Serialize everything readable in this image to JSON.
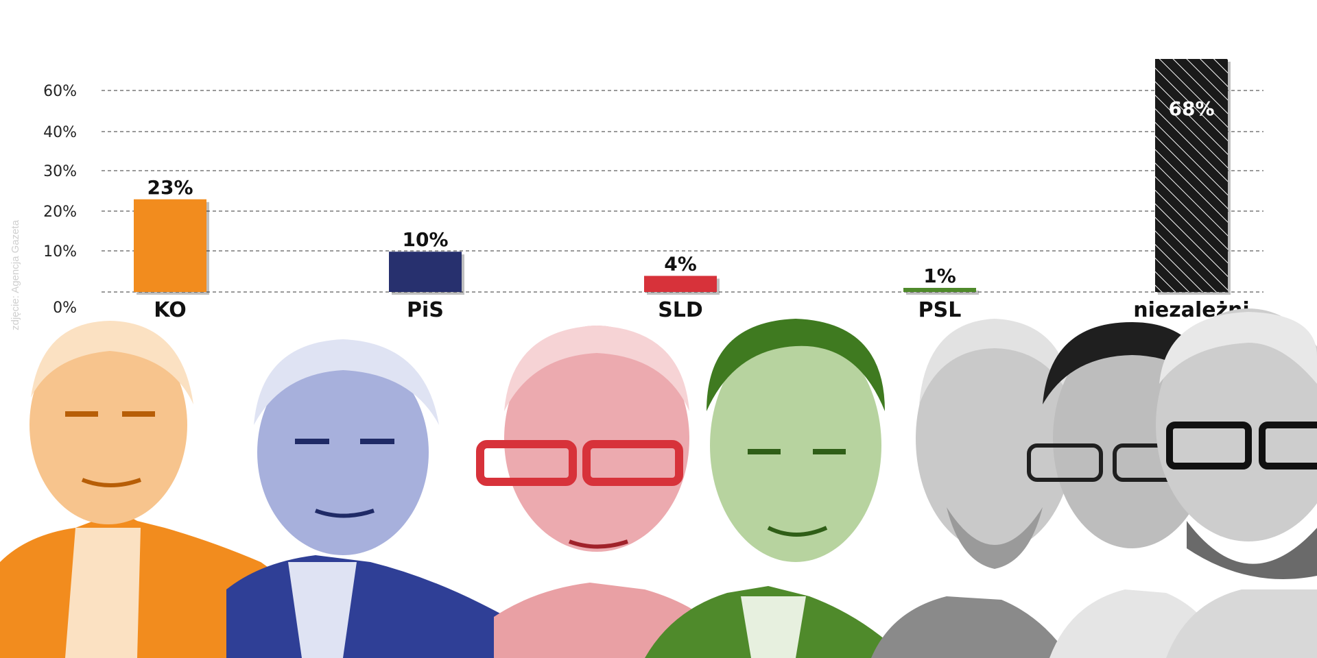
{
  "credit": "zdjęcie: Agencja Gazeta",
  "chart_data": {
    "type": "bar",
    "categories": [
      "KO",
      "PiS",
      "SLD",
      "PSL",
      "niezależni"
    ],
    "values": [
      23,
      10,
      4,
      1,
      68
    ],
    "value_labels": [
      "23%",
      "10%",
      "4%",
      "1%",
      "68%"
    ],
    "colors": [
      "#f28c1e",
      "#27306e",
      "#d7323a",
      "#4f8a2b",
      "#1a1a1a"
    ],
    "yticks": [
      "0%",
      "10%",
      "20%",
      "30%",
      "40%",
      "60%"
    ],
    "title": "",
    "xlabel": "",
    "ylabel": "",
    "grid": true,
    "legend": "none"
  },
  "photos": [
    {
      "name": "KO politician",
      "color": "#f28c1e"
    },
    {
      "name": "PiS politician",
      "color": "#2f3f96"
    },
    {
      "name": "SLD politician",
      "color": "#d7323a"
    },
    {
      "name": "PSL politician",
      "color": "#4f8a2b"
    },
    {
      "name": "independent politician 1",
      "color": "#6b6b6b"
    },
    {
      "name": "independent politician 2",
      "color": "#3a3a3a"
    },
    {
      "name": "independent politician 3",
      "color": "#555555"
    }
  ]
}
